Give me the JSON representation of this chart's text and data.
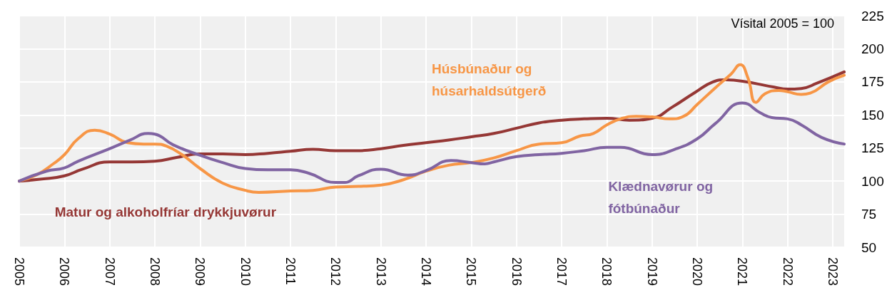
{
  "chart_data": {
    "type": "line",
    "annotations": [
      "Vísital 2005 = 100"
    ],
    "xlim": [
      2005,
      2023.25
    ],
    "xticks": [
      2005,
      2006,
      2007,
      2008,
      2009,
      2010,
      2011,
      2012,
      2013,
      2014,
      2015,
      2016,
      2017,
      2018,
      2019,
      2020,
      2021,
      2022,
      2023
    ],
    "ylim": [
      50,
      225
    ],
    "yticks": [
      50,
      75,
      100,
      125,
      150,
      175,
      200,
      225
    ],
    "grid": true,
    "legend": false,
    "marker": "none",
    "series": [
      {
        "name": "Matur og alkoholfríar drykkjuvørur",
        "color": "#953735",
        "x": [
          2005,
          2005.5,
          2006,
          2006.4,
          2007,
          2007.5,
          2008,
          2008.5,
          2009,
          2009.5,
          2010,
          2010.5,
          2011,
          2011.5,
          2012,
          2012.5,
          2013,
          2013.5,
          2014,
          2014.5,
          2015,
          2015.5,
          2016,
          2016.5,
          2017,
          2017.5,
          2018,
          2018.5,
          2019,
          2019.45,
          2019.95,
          2020.35,
          2020.6,
          2021,
          2021.7,
          2022,
          2022.3,
          2022.65,
          2023.25
        ],
        "values": [
          100,
          101.5,
          104,
          109,
          114.5,
          114.5,
          115,
          118,
          120.5,
          120.5,
          120,
          121,
          122.5,
          124,
          123,
          123,
          124.5,
          127,
          129,
          131,
          133.5,
          136,
          140,
          144,
          146,
          147,
          147.5,
          146,
          147.5,
          156,
          167,
          175,
          176.5,
          175.5,
          171,
          169.5,
          170,
          174,
          182.5
        ]
      },
      {
        "name": "Húsbúnaður og húsarhaldsútgerð",
        "color": "#f79646",
        "x": [
          2005,
          2005.4,
          2005.75,
          2006,
          2006.3,
          2006.67,
          2007,
          2007.4,
          2007.75,
          2008,
          2008.25,
          2008.6,
          2009,
          2009.5,
          2010,
          2010.3,
          2011,
          2011.5,
          2012,
          2012.5,
          2013,
          2013.5,
          2014,
          2014.5,
          2015,
          2015.5,
          2016,
          2016.5,
          2017,
          2017.4,
          2017.7,
          2018,
          2018.3,
          2018.65,
          2019,
          2019.4,
          2019.7,
          2020,
          2020.4,
          2020.75,
          2020.95,
          2021.12,
          2021.3,
          2021.5,
          2021.8,
          2022,
          2022.3,
          2022.5,
          2022.9,
          2023.25
        ],
        "values": [
          100,
          105,
          113,
          120,
          132,
          138.5,
          135.5,
          129,
          128,
          128,
          126.5,
          120,
          109.5,
          98.5,
          93,
          91.5,
          92.5,
          93,
          95.5,
          96,
          97,
          101,
          107.5,
          112,
          114,
          117.5,
          123,
          128,
          129,
          134,
          136,
          142.5,
          147,
          149,
          148.5,
          147,
          149,
          158,
          170.5,
          181,
          188,
          178,
          159.5,
          166,
          168.5,
          167.5,
          165.5,
          166.5,
          175,
          180
        ]
      },
      {
        "name": "Klædnavørur og fótbúnaður",
        "color": "#8064a2",
        "x": [
          2005,
          2005.6,
          2006,
          2006.3,
          2007,
          2007.45,
          2007.85,
          2008,
          2008.4,
          2009,
          2009.5,
          2010,
          2010.5,
          2011,
          2011.4,
          2012,
          2012.2,
          2012.5,
          2013,
          2013.6,
          2014,
          2014.55,
          2015,
          2015.3,
          2015.5,
          2016,
          2016.5,
          2017,
          2017.5,
          2018,
          2018.3,
          2019,
          2019.5,
          2020,
          2020.4,
          2021,
          2021.4,
          2021.65,
          2022,
          2022.3,
          2022.75,
          2023.25
        ],
        "values": [
          100,
          107.5,
          110,
          115,
          124.5,
          131,
          136,
          135.5,
          127.5,
          119.5,
          114,
          109.5,
          108.5,
          108.5,
          106,
          99,
          99,
          104,
          109,
          104.5,
          108,
          115.5,
          114,
          113,
          114.5,
          118.5,
          120,
          121,
          123,
          125.5,
          125.5,
          120,
          124,
          132,
          143.5,
          159,
          151.5,
          148,
          147,
          142.5,
          133,
          128
        ]
      }
    ]
  }
}
